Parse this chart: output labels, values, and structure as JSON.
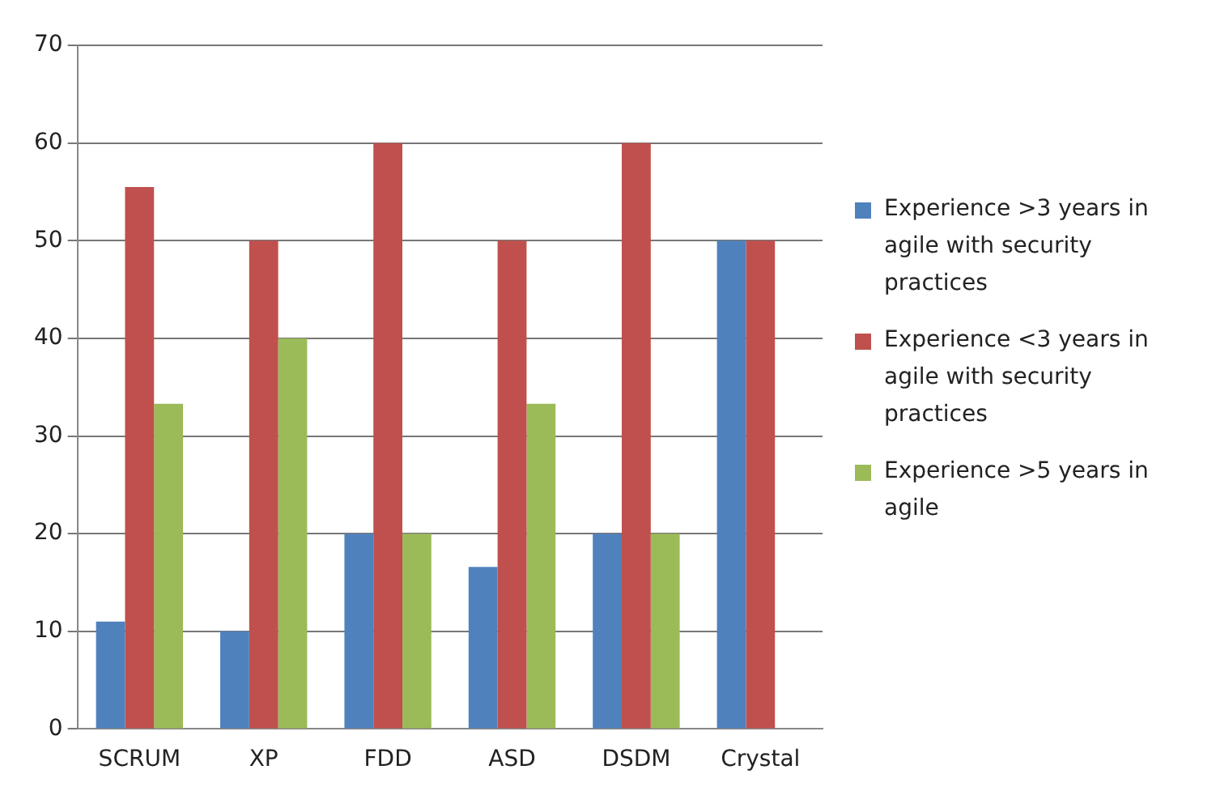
{
  "chart_data": {
    "type": "bar",
    "categories": [
      "SCRUM",
      "XP",
      "FDD",
      "ASD",
      "DSDM",
      "Crystal"
    ],
    "series": [
      {
        "name": "Experience >3 years in agile with security practices",
        "color": "#4f81bd",
        "values": [
          11,
          10,
          20,
          16.6,
          20,
          50
        ]
      },
      {
        "name": "Experience <3 years in agile with security practices",
        "color": "#c0504d",
        "values": [
          55.5,
          50,
          60,
          50,
          60,
          50
        ]
      },
      {
        "name": "Experience >5 years in agile",
        "color": "#9bbb59",
        "values": [
          33.3,
          40,
          20,
          33.3,
          20,
          0
        ]
      }
    ],
    "ylim": [
      0,
      70
    ],
    "yticks": [
      0,
      10,
      20,
      30,
      40,
      50,
      60,
      70
    ],
    "grid": "y",
    "legend": "right"
  }
}
